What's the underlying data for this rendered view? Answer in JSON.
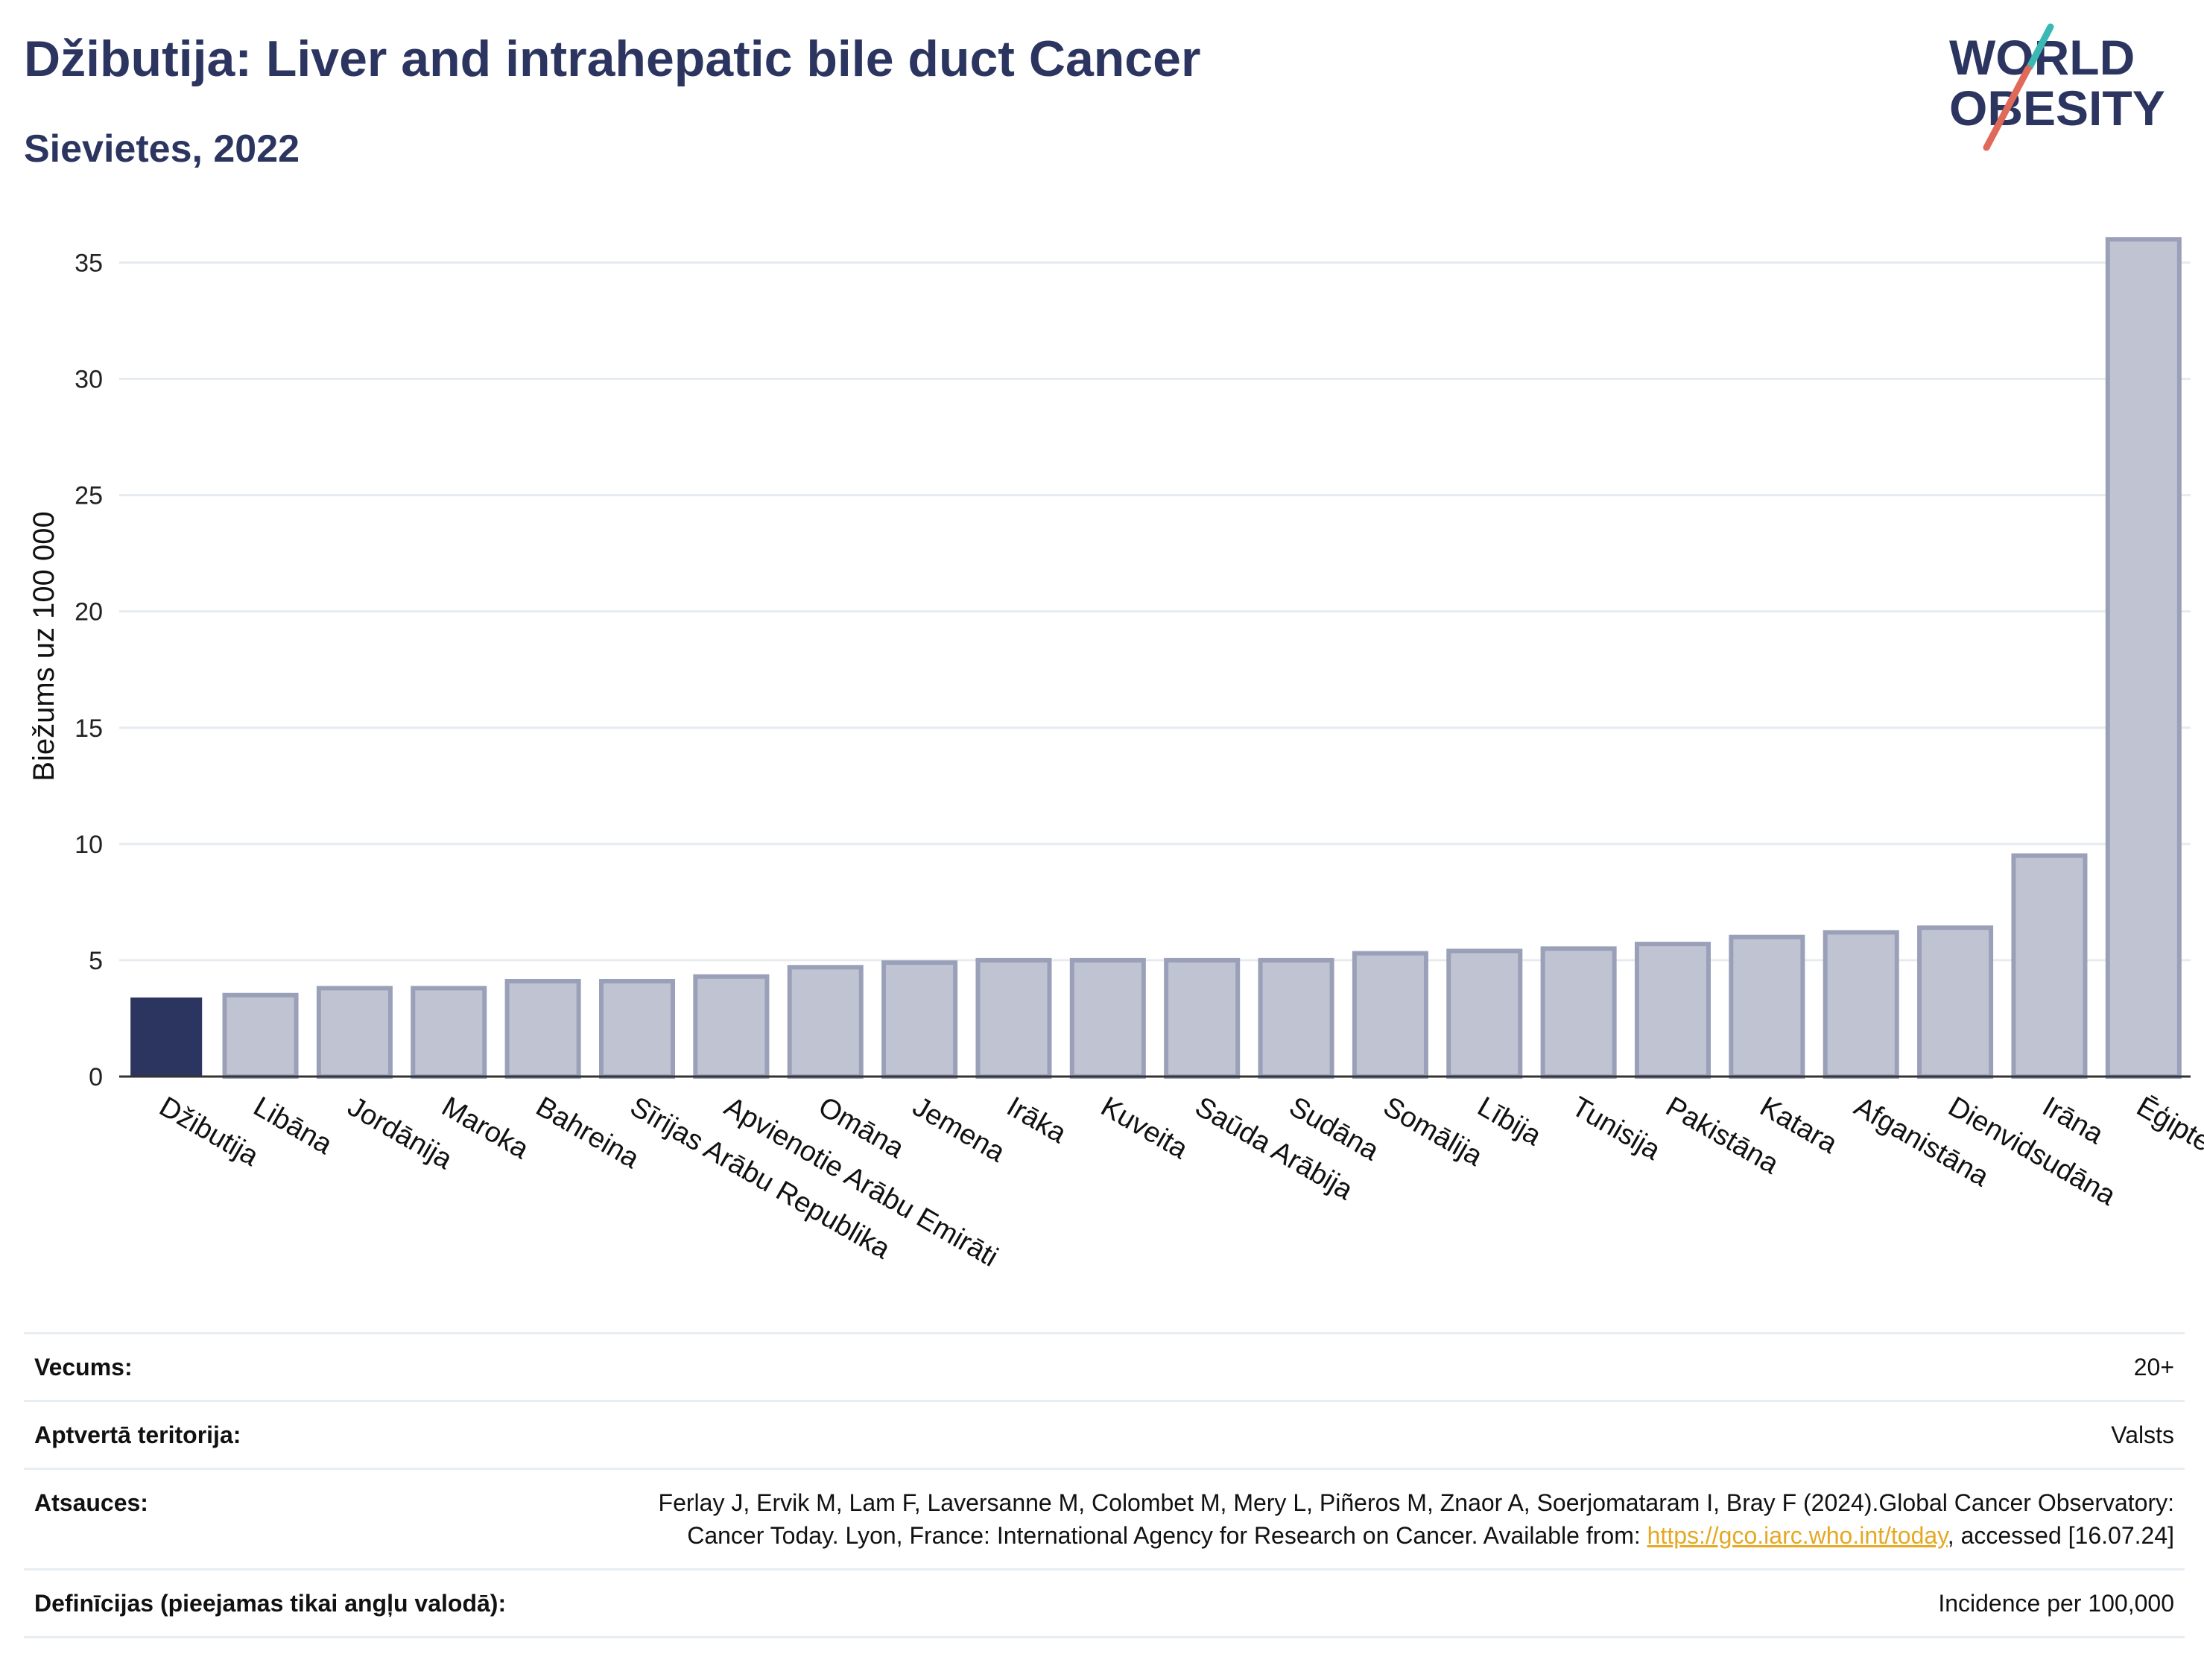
{
  "header": {
    "title": "Džibutija: Liver and intrahepatic bile duct Cancer",
    "subtitle": "Sievietes, 2022"
  },
  "logo": {
    "line1": "WORLD",
    "line2": "OBESITY"
  },
  "colors": {
    "highlight_bar": "#2b3560",
    "other_bar_fill": "#c0c4d2",
    "other_bar_stroke": "#9aa0b8",
    "title": "#2b3560",
    "logo_teal": "#3ab8b4",
    "logo_coral": "#e06a5a",
    "link": "#e5a823"
  },
  "chart_data": {
    "type": "bar",
    "title": "Džibutija: Liver and intrahepatic bile duct Cancer",
    "subtitle": "Sievietes, 2022",
    "ylabel": "Biežums uz 100 000",
    "xlabel": "",
    "ylim": [
      0,
      37
    ],
    "yticks": [
      0,
      5,
      10,
      15,
      20,
      25,
      30,
      35
    ],
    "grid": true,
    "highlight": "Džibutija",
    "categories": [
      "Džibutija",
      "Libāna",
      "Jordānija",
      "Maroka",
      "Bahreina",
      "Sīrijas Arābu Republika",
      "Apvienotie Arābu Emirāti",
      "Omāna",
      "Jemena",
      "Irāka",
      "Kuveita",
      "Saūda Arābija",
      "Sudāna",
      "Somālija",
      "Lībija",
      "Tunisija",
      "Pakistāna",
      "Katara",
      "Afganistāna",
      "Dienvidsudāna",
      "Irāna",
      "Ēģipte"
    ],
    "values": [
      3.4,
      3.5,
      3.8,
      3.8,
      4.1,
      4.1,
      4.3,
      4.7,
      4.9,
      5.0,
      5.0,
      5.0,
      5.0,
      5.3,
      5.4,
      5.5,
      5.7,
      6.0,
      6.2,
      6.4,
      9.5,
      36.0
    ]
  },
  "info": [
    {
      "key": "Vecums:",
      "value": "20+"
    },
    {
      "key": "Aptvertā teritorija:",
      "value": "Valsts"
    },
    {
      "key": "Atsauces:",
      "value_part1": "Ferlay J, Ervik M, Lam F, Laversanne M, Colombet M, Mery L, Piñeros M, Znaor A, Soerjomataram I, Bray F (2024).Global Cancer Observatory: Cancer Today. Lyon, France: International Agency for Research on Cancer. Available from: ",
      "link": "https://gco.iarc.who.int/today",
      "value_part2": ", accessed [16.07.24]"
    },
    {
      "key": "Definīcijas (pieejamas tikai angļu valodā):",
      "value": "Incidence per 100,000"
    }
  ]
}
